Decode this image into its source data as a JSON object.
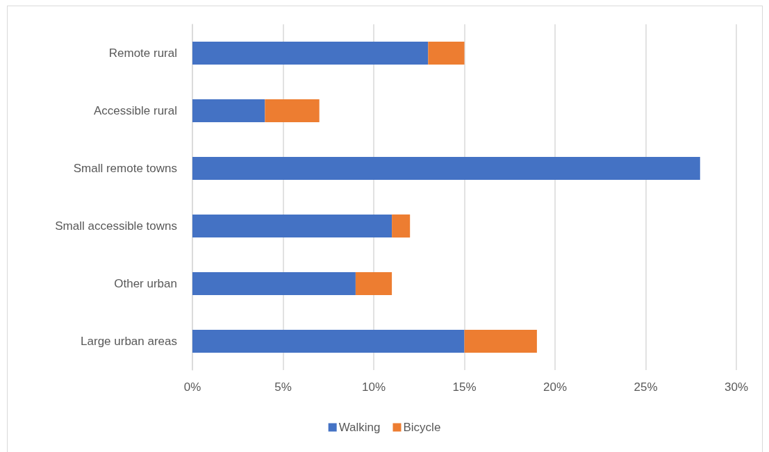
{
  "chart_data": {
    "type": "bar",
    "orientation": "horizontal",
    "stacked": true,
    "categories": [
      "Remote rural",
      "Accessible rural",
      "Small remote towns",
      "Small accessible towns",
      "Other urban",
      "Large urban areas"
    ],
    "series": [
      {
        "name": "Walking",
        "color": "#4472c4",
        "values": [
          13,
          4,
          28,
          11,
          9,
          15
        ]
      },
      {
        "name": "Bicycle",
        "color": "#ed7d31",
        "values": [
          2,
          3,
          null,
          1,
          2,
          4
        ]
      }
    ],
    "xlim": [
      0,
      30
    ],
    "xticks": [
      {
        "value": 0,
        "label": "0%"
      },
      {
        "value": 5,
        "label": "5%"
      },
      {
        "value": 10,
        "label": "10%"
      },
      {
        "value": 15,
        "label": "15%"
      },
      {
        "value": 20,
        "label": "20%"
      },
      {
        "value": 25,
        "label": "25%"
      },
      {
        "value": 30,
        "label": "30%"
      }
    ],
    "grid": "x",
    "legend": "bottom"
  }
}
